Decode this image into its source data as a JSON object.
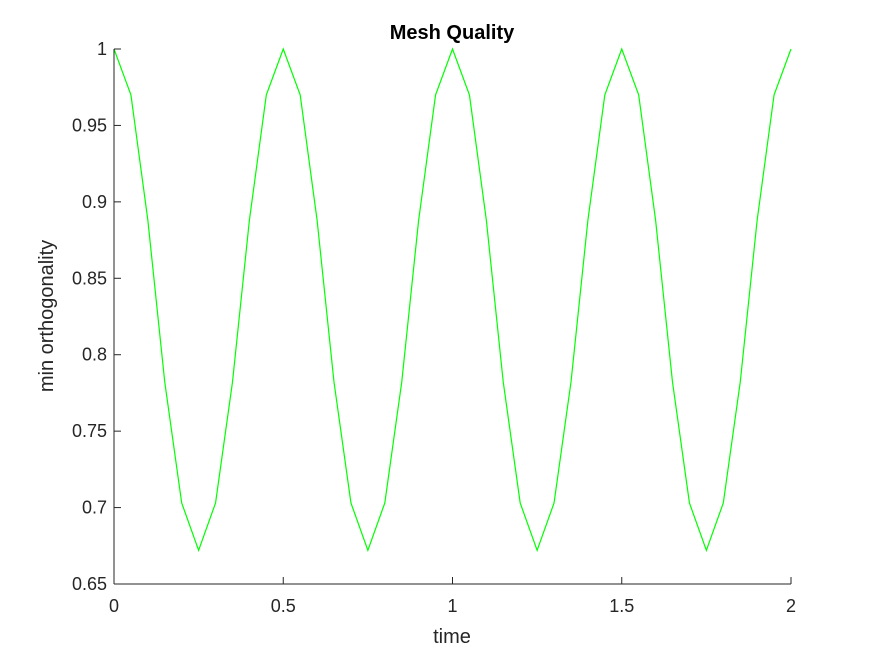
{
  "chart_data": {
    "type": "line",
    "title": "Mesh Quality",
    "xlabel": "time",
    "ylabel": "min orthogonality",
    "xlim": [
      0,
      2
    ],
    "ylim": [
      0.65,
      1
    ],
    "xticks": [
      0,
      0.5,
      1,
      1.5,
      2
    ],
    "xtick_labels": [
      "0",
      "0.5",
      "1",
      "1.5",
      "2"
    ],
    "yticks": [
      0.65,
      0.7,
      0.75,
      0.8,
      0.85,
      0.9,
      0.95,
      1
    ],
    "ytick_labels": [
      "0.65",
      "0.7",
      "0.75",
      "0.8",
      "0.85",
      "0.9",
      "0.95",
      "1"
    ],
    "grid": false,
    "series": [
      {
        "color": "#00ff00",
        "x": [
          0,
          0.05,
          0.1,
          0.15,
          0.2,
          0.25,
          0.3,
          0.35,
          0.4,
          0.45,
          0.5,
          0.55,
          0.6,
          0.65,
          0.7,
          0.75,
          0.8,
          0.85,
          0.9,
          0.95,
          1,
          1.05,
          1.1,
          1.15,
          1.2,
          1.25,
          1.3,
          1.35,
          1.4,
          1.45,
          1.5,
          1.55,
          1.6,
          1.65,
          1.7,
          1.75,
          1.8,
          1.85,
          1.9,
          1.95,
          2
        ],
        "y": [
          1,
          0.97,
          0.888,
          0.782,
          0.703,
          0.672,
          0.703,
          0.782,
          0.888,
          0.97,
          1,
          0.97,
          0.888,
          0.782,
          0.703,
          0.672,
          0.703,
          0.782,
          0.888,
          0.97,
          1,
          0.97,
          0.888,
          0.782,
          0.703,
          0.672,
          0.703,
          0.782,
          0.888,
          0.97,
          1,
          0.97,
          0.888,
          0.782,
          0.703,
          0.672,
          0.703,
          0.782,
          0.888,
          0.97,
          1
        ]
      }
    ]
  }
}
